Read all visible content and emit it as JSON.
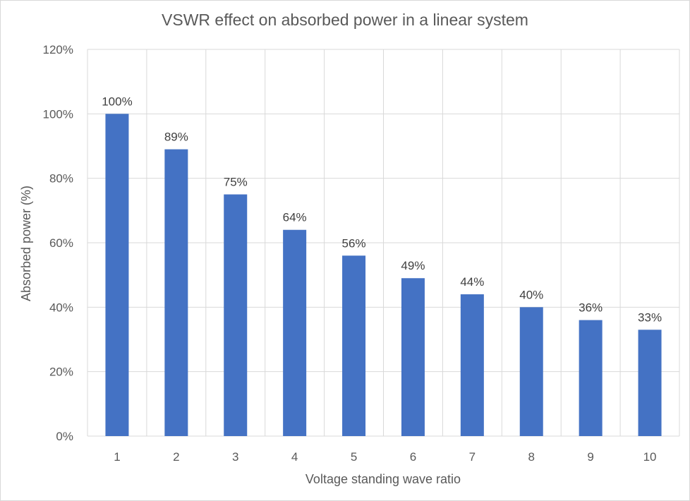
{
  "chart_data": {
    "type": "bar",
    "title": "VSWR effect on absorbed power in a linear system",
    "xlabel": "Voltage standing wave ratio",
    "ylabel": "Absorbed power (%)",
    "categories": [
      "1",
      "2",
      "3",
      "4",
      "5",
      "6",
      "7",
      "8",
      "9",
      "10"
    ],
    "values": [
      100,
      89,
      75,
      64,
      56,
      49,
      44,
      40,
      36,
      33
    ],
    "data_labels": [
      "100%",
      "89%",
      "75%",
      "64%",
      "56%",
      "49%",
      "44%",
      "40%",
      "36%",
      "33%"
    ],
    "ylim": [
      0,
      120
    ],
    "yticks": [
      0,
      20,
      40,
      60,
      80,
      100,
      120
    ],
    "ytick_labels": [
      "0%",
      "20%",
      "40%",
      "60%",
      "80%",
      "100%",
      "120%"
    ],
    "grid": "both",
    "legend": "none",
    "colors": {
      "bar": "#4472C4",
      "grid": "#D9D9D9",
      "text": "#595959"
    }
  }
}
